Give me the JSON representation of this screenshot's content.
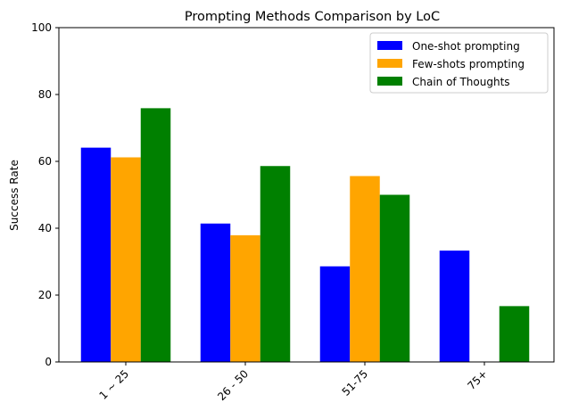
{
  "chart_data": {
    "type": "bar",
    "title": "Prompting Methods Comparison by LoC",
    "xlabel": "",
    "ylabel": "Success Rate",
    "ylim": [
      0,
      100
    ],
    "yticks": [
      0,
      20,
      40,
      60,
      80,
      100
    ],
    "categories": [
      "1 ~ 25",
      "26 - 50",
      "51-75",
      "75+"
    ],
    "series": [
      {
        "name": "One-shot prompting",
        "color": "#0000ff",
        "values": [
          64.1,
          41.4,
          28.6,
          33.3
        ]
      },
      {
        "name": "Few-shots prompting",
        "color": "#ffa500",
        "values": [
          61.2,
          37.9,
          55.6,
          0
        ]
      },
      {
        "name": "Chain of Thoughts",
        "color": "#008000",
        "values": [
          75.9,
          58.6,
          50.0,
          16.7
        ]
      }
    ],
    "legend_position": "top-right",
    "grid": false
  }
}
